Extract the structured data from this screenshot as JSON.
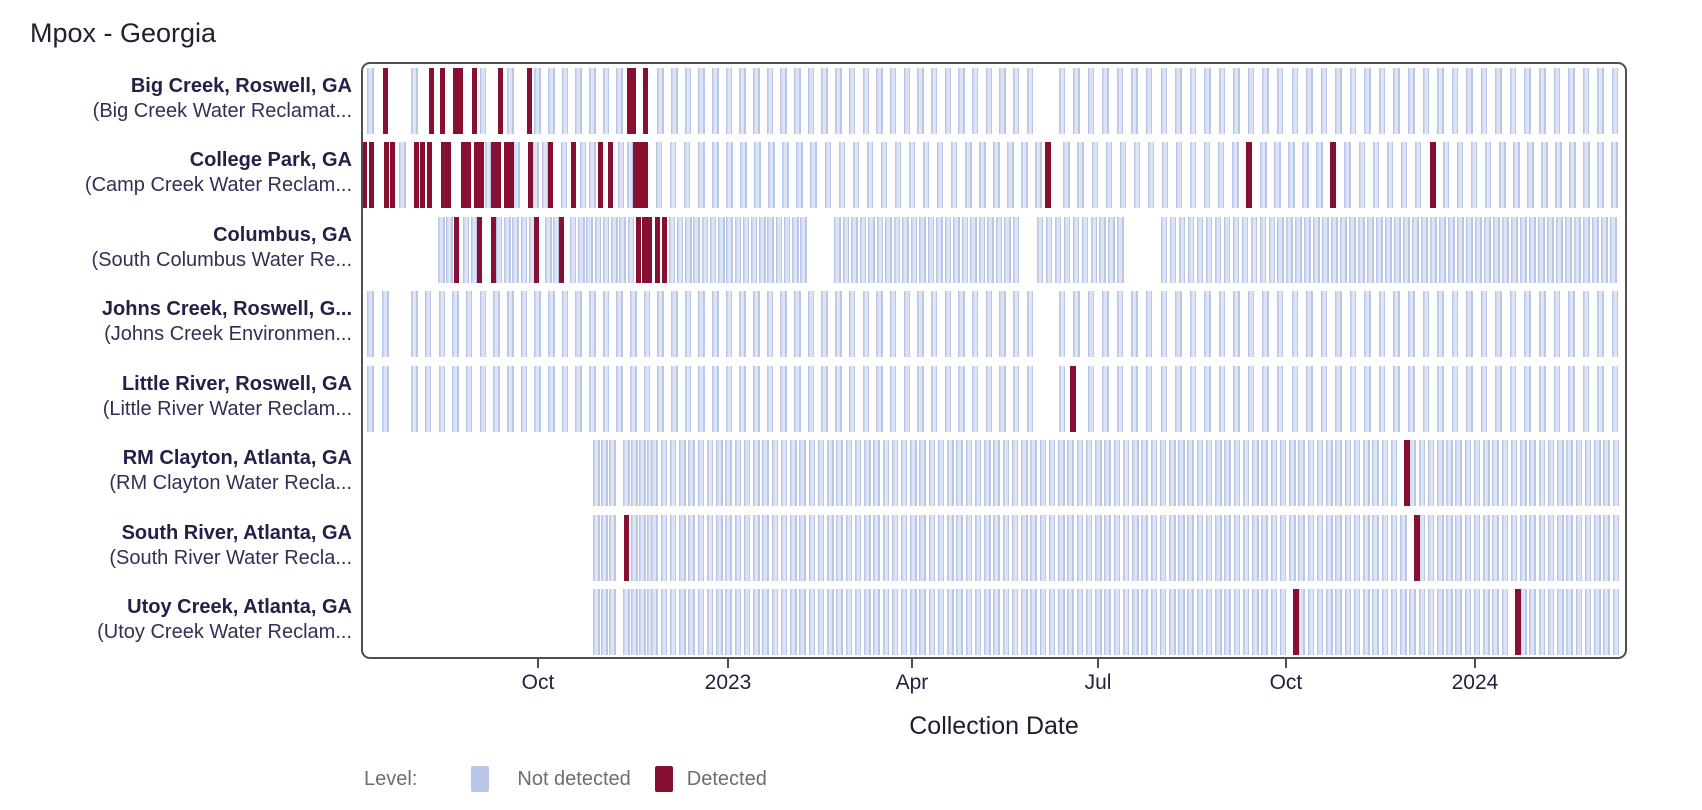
{
  "title": "Mpox - Georgia",
  "x_axis": {
    "label": "Collection Date",
    "ticks": [
      {
        "label": "Oct",
        "f": 0.1398
      },
      {
        "label": "2023",
        "f": 0.2899
      },
      {
        "label": "Apr",
        "f": 0.4352
      },
      {
        "label": "Jul",
        "f": 0.5822
      },
      {
        "label": "Oct",
        "f": 0.7306
      },
      {
        "label": "2024",
        "f": 0.8799
      }
    ]
  },
  "legend": {
    "title": "Level:",
    "items": [
      {
        "label": "Not detected",
        "color": "#b9c6e8"
      },
      {
        "label": "Detected",
        "color": "#870f32"
      }
    ]
  },
  "colors": {
    "not_detected": "#c6d0eb",
    "not_detected_edge": "#b9c6e7",
    "detected": "#870f32",
    "plot_border": "#4f4f4f",
    "site_name_text": "#23214a",
    "facility_text": "#312f55",
    "legend_text": "#6e6e6e"
  },
  "chart_data": {
    "type": "heatmap",
    "mark": "vertical-strip-per-sample",
    "x_domain_dates_approx": [
      "2022-07-08",
      "2024-03-13"
    ],
    "x_unit": "fraction of plot width (0 = left edge, 1 = right edge)",
    "legend_position": "bottom-left",
    "rows": [
      {
        "name": "Big Creek, Roswell, GA",
        "facility": "(Big Creek Water Reclamat...",
        "segments": [
          {
            "from": 0.0075,
            "to": 0.0235,
            "step": 0.0119
          },
          {
            "from": 0.0423,
            "to": 0.5362,
            "step": 0.0108
          },
          {
            "from": 0.5536,
            "to": 0.9929,
            "step": 0.0115
          }
        ],
        "detected": [
          {
            "f": 0.0194,
            "date": "2022-07-19"
          },
          {
            "f": 0.0557,
            "date": "2022-08-10"
          },
          {
            "f": 0.0644,
            "date": "2022-08-16"
          },
          {
            "f": 0.0747,
            "date": "2022-08-22"
          },
          {
            "f": 0.0786,
            "date": "2022-08-24"
          },
          {
            "f": 0.0897,
            "date": "2022-08-31"
          },
          {
            "f": 0.1102,
            "date": "2022-09-13"
          },
          {
            "f": 0.1331,
            "date": "2022-09-27"
          },
          {
            "f": 0.2122,
            "date": "2022-11-15"
          },
          {
            "f": 0.2153,
            "date": "2022-11-17"
          },
          {
            "f": 0.2248,
            "date": "2022-11-22"
          }
        ]
      },
      {
        "name": "College Park, GA",
        "facility": "(Camp Creek Water Reclam...",
        "segments": [
          {
            "from": 0.0028,
            "to": 0.228,
            "step": 0.0075
          },
          {
            "from": 0.2355,
            "to": 0.9929,
            "step": 0.0111
          }
        ],
        "detected": [
          {
            "f": 0.0028,
            "date": "2022-07-09"
          },
          {
            "f": 0.0083,
            "date": "2022-07-12"
          },
          {
            "f": 0.0202,
            "date": "2022-07-19"
          },
          {
            "f": 0.0249,
            "date": "2022-07-22"
          },
          {
            "f": 0.0439,
            "date": "2022-08-03"
          },
          {
            "f": 0.0486,
            "date": "2022-08-06"
          },
          {
            "f": 0.0541,
            "date": "2022-08-09"
          },
          {
            "f": 0.0652,
            "date": "2022-08-16"
          },
          {
            "f": 0.0691,
            "date": "2022-08-19"
          },
          {
            "f": 0.081,
            "date": "2022-08-26"
          },
          {
            "f": 0.0849,
            "date": "2022-08-28"
          },
          {
            "f": 0.0913,
            "date": "2022-09-01"
          },
          {
            "f": 0.0952,
            "date": "2022-09-04"
          },
          {
            "f": 0.1047,
            "date": "2022-09-09"
          },
          {
            "f": 0.1086,
            "date": "2022-09-12"
          },
          {
            "f": 0.115,
            "date": "2022-09-16"
          },
          {
            "f": 0.1189,
            "date": "2022-09-18"
          },
          {
            "f": 0.1339,
            "date": "2022-09-27"
          },
          {
            "f": 0.1497,
            "date": "2022-10-07"
          },
          {
            "f": 0.1679,
            "date": "2022-10-18"
          },
          {
            "f": 0.1893,
            "date": "2022-11-01"
          },
          {
            "f": 0.1972,
            "date": "2022-11-05"
          },
          {
            "f": 0.2169,
            "date": "2022-11-18"
          },
          {
            "f": 0.2209,
            "date": "2022-11-20"
          },
          {
            "f": 0.2248,
            "date": "2022-11-22"
          },
          {
            "f": 0.5425,
            "date": "2023-06-06"
          },
          {
            "f": 0.7013,
            "date": "2023-09-12"
          },
          {
            "f": 0.7677,
            "date": "2023-10-23"
          },
          {
            "f": 0.8467,
            "date": "2023-12-11"
          }
        ]
      },
      {
        "name": "Columbus, GA",
        "facility": "(South Columbus Water Re...",
        "segments": [
          {
            "from": 0.0636,
            "to": 0.3528,
            "step": 0.0065
          },
          {
            "from": 0.3765,
            "to": 0.5188,
            "step": 0.0067
          },
          {
            "from": 0.5362,
            "to": 0.6041,
            "step": 0.0071
          },
          {
            "from": 0.6342,
            "to": 0.9929,
            "step": 0.0071
          }
        ],
        "detected": [
          {
            "f": 0.0755,
            "date": "2022-08-22"
          },
          {
            "f": 0.0936,
            "date": "2022-09-02"
          },
          {
            "f": 0.1047,
            "date": "2022-09-09"
          },
          {
            "f": 0.1387,
            "date": "2022-09-30"
          },
          {
            "f": 0.1584,
            "date": "2022-10-12"
          },
          {
            "f": 0.2193,
            "date": "2022-11-19"
          },
          {
            "f": 0.224,
            "date": "2022-11-22"
          },
          {
            "f": 0.228,
            "date": "2022-11-24"
          },
          {
            "f": 0.2343,
            "date": "2022-11-28"
          },
          {
            "f": 0.2398,
            "date": "2022-12-02"
          }
        ]
      },
      {
        "name": "Johns Creek, Roswell, G...",
        "facility": "(Johns Creek Environmen...",
        "segments": [
          {
            "from": 0.0075,
            "to": 0.0235,
            "step": 0.0119
          },
          {
            "from": 0.0423,
            "to": 0.5362,
            "step": 0.0108
          },
          {
            "from": 0.5536,
            "to": 0.9929,
            "step": 0.0115
          }
        ],
        "detected": []
      },
      {
        "name": "Little River, Roswell, GA",
        "facility": "(Little River Water Reclam...",
        "segments": [
          {
            "from": 0.0075,
            "to": 0.0235,
            "step": 0.0119
          },
          {
            "from": 0.0423,
            "to": 0.5362,
            "step": 0.0108
          },
          {
            "from": 0.5536,
            "to": 0.9929,
            "step": 0.0115
          }
        ],
        "detected": [
          {
            "f": 0.5623,
            "date": "2023-06-18"
          }
        ]
      },
      {
        "name": "RM Clayton, Atlanta, GA",
        "facility": "(RM Clayton Water Recla...",
        "segments": [
          {
            "from": 0.1861,
            "to": 0.2043,
            "step": 0.0063
          },
          {
            "from": 0.2099,
            "to": 0.2288,
            "step": 0.0063
          },
          {
            "from": 0.232,
            "to": 0.9929,
            "step": 0.0073
          }
        ],
        "detected": [
          {
            "f": 0.8262,
            "date": "2023-11-28"
          }
        ]
      },
      {
        "name": "South River, Atlanta, GA",
        "facility": "(South River Water Recla...",
        "segments": [
          {
            "from": 0.1861,
            "to": 0.2043,
            "step": 0.0063
          },
          {
            "from": 0.2099,
            "to": 0.2288,
            "step": 0.0063
          },
          {
            "from": 0.232,
            "to": 0.9929,
            "step": 0.0073
          }
        ],
        "detected": [
          {
            "f": 0.2099,
            "date": "2022-11-13"
          },
          {
            "f": 0.8341,
            "date": "2023-12-03"
          }
        ]
      },
      {
        "name": "Utoy Creek, Atlanta, GA",
        "facility": "(Utoy Creek Water Reclam...",
        "segments": [
          {
            "from": 0.1861,
            "to": 0.2043,
            "step": 0.0063
          },
          {
            "from": 0.2099,
            "to": 0.2288,
            "step": 0.0063
          },
          {
            "from": 0.232,
            "to": 0.9929,
            "step": 0.0073
          }
        ],
        "detected": [
          {
            "f": 0.7384,
            "date": "2023-10-05"
          },
          {
            "f": 0.9139,
            "date": "2024-01-21"
          }
        ]
      }
    ]
  }
}
